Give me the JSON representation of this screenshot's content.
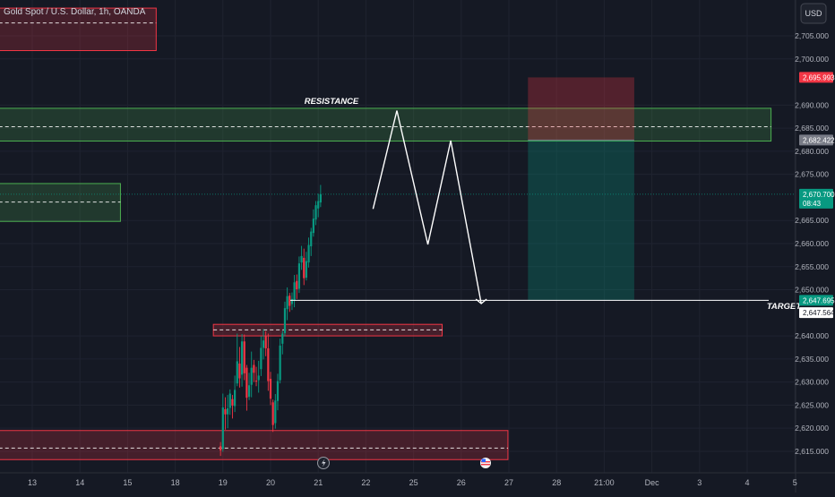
{
  "header": {
    "symbol_label": "Gold Spot / U.S. Dollar, 1h, OANDA"
  },
  "currency_button": {
    "label": "USD"
  },
  "annotations": {
    "resistance": "RESISTANCE",
    "target": "TARGET"
  },
  "price_badges": [
    {
      "value": "2,695.993",
      "bg": "#f23645",
      "fg": "#ffffff"
    },
    {
      "value": "2,682.422",
      "bg": "#787b86",
      "fg": "#ffffff"
    },
    {
      "value": "2,670.700",
      "sub": "08:43",
      "bg": "#089981",
      "fg": "#ffffff"
    },
    {
      "value": "2,647.695",
      "bg": "#089981",
      "fg": "#ffffff"
    },
    {
      "value": "2,647.564",
      "bg": "#ffffff",
      "fg": "#131722"
    }
  ],
  "colors": {
    "background": "#151924",
    "up": "#089981",
    "down": "#f23645",
    "axis_text": "#b2b5be",
    "grid": "#1f2330",
    "green_zone": "#4caf50",
    "red_zone": "#f23645"
  },
  "chart_data": {
    "type": "candlestick",
    "instrument": "Gold Spot / U.S. Dollar",
    "interval": "1h",
    "source": "OANDA",
    "price_axis": {
      "ticks": [
        "2,705.000",
        "2,700.000",
        "2,690.000",
        "2,685.000",
        "2,680.000",
        "2,675.000",
        "2,665.000",
        "2,660.000",
        "2,655.000",
        "2,650.000",
        "2,640.000",
        "2,635.000",
        "2,630.000",
        "2,625.000",
        "2,620.000",
        "2,615.000"
      ],
      "range": [
        2613,
        2711
      ]
    },
    "time_axis": {
      "ticks": [
        "13",
        "14",
        "15",
        "18",
        "19",
        "20",
        "21",
        "22",
        "25",
        "26",
        "27",
        "28",
        "21:00",
        "Dec",
        "3",
        "4",
        "5"
      ],
      "day_index": [
        0,
        1,
        2,
        3,
        4,
        5,
        6,
        7,
        8,
        9,
        10,
        11,
        12,
        13,
        14,
        15,
        16
      ]
    },
    "last_price": 2670.7,
    "zones": [
      {
        "name": "red-zone-top",
        "color": "red",
        "x_from": -0.7,
        "x_to": 2.6,
        "y_bottom": 2701.8,
        "y_top": 2711,
        "midline": 2707.8
      },
      {
        "name": "resistance-zone",
        "color": "green",
        "x_from": -0.7,
        "x_to": 15.5,
        "y_bottom": 2682.2,
        "y_top": 2689.3,
        "midline": 2685.3
      },
      {
        "name": "green-zone-left",
        "color": "green",
        "x_from": -0.7,
        "x_to": 1.85,
        "y_bottom": 2664.8,
        "y_top": 2673.0,
        "midline": 2669.0
      },
      {
        "name": "red-zone-mid",
        "color": "red",
        "x_from": 3.8,
        "x_to": 8.6,
        "y_bottom": 2640.0,
        "y_top": 2642.5,
        "midline": 2641.3
      },
      {
        "name": "red-zone-bottom",
        "color": "red",
        "x_from": -0.7,
        "x_to": 9.98,
        "y_bottom": 2613.2,
        "y_top": 2619.5,
        "midline": 2615.7
      }
    ],
    "position": {
      "x_from": 10.4,
      "x_to": 12.63,
      "stop": 2695.993,
      "entry": 2682.422,
      "target": 2647.695
    },
    "target_line": 2647.695,
    "projection_path": [
      [
        7.15,
        2667.5
      ],
      [
        7.65,
        2688.8
      ],
      [
        8.3,
        2659.8
      ],
      [
        8.78,
        2682.3
      ],
      [
        9.42,
        2647.0
      ]
    ],
    "candles": [
      [
        3.95,
        2616.1,
        2617.0,
        2614.0,
        2615.2
      ],
      [
        4.0,
        2615.5,
        2627.5,
        2614.9,
        2624.5
      ],
      [
        4.05,
        2624.1,
        2626.7,
        2619.7,
        2623.0
      ],
      [
        4.1,
        2623.0,
        2627.2,
        2620.0,
        2624.3
      ],
      [
        4.15,
        2624.4,
        2628.4,
        2622.9,
        2627.5
      ],
      [
        4.2,
        2626.3,
        2627.2,
        2622.1,
        2624.9
      ],
      [
        4.25,
        2624.8,
        2631.4,
        2623.5,
        2628.3
      ],
      [
        4.3,
        2629.7,
        2640.5,
        2629.1,
        2634.5
      ],
      [
        4.35,
        2634.0,
        2637.6,
        2628.8,
        2630.8
      ],
      [
        4.4,
        2631.6,
        2640.4,
        2629.0,
        2638.8
      ],
      [
        4.45,
        2638.8,
        2640.3,
        2630.4,
        2631.9
      ],
      [
        4.5,
        2633.1,
        2633.7,
        2623.8,
        2626.6
      ],
      [
        4.55,
        2626.8,
        2632.0,
        2626.1,
        2629.3
      ],
      [
        4.6,
        2629.4,
        2636.6,
        2626.7,
        2633.1
      ],
      [
        4.65,
        2633.7,
        2634.8,
        2630.0,
        2632.0
      ],
      [
        4.7,
        2630.3,
        2633.3,
        2629.1,
        2630.1
      ],
      [
        4.75,
        2630.4,
        2634.6,
        2627.7,
        2631.4
      ],
      [
        4.8,
        2632.8,
        2639.9,
        2631.3,
        2637.4
      ],
      [
        4.85,
        2637.4,
        2641.5,
        2634.9,
        2639.0
      ],
      [
        4.9,
        2640.0,
        2641.0,
        2635.6,
        2637.3
      ],
      [
        4.95,
        2637.3,
        2640.5,
        2628.1,
        2630.2
      ],
      [
        5.0,
        2630.7,
        2632.2,
        2625.0,
        2626.4
      ],
      [
        5.05,
        2625.6,
        2626.2,
        2619.2,
        2620.7
      ],
      [
        5.1,
        2621.1,
        2627.4,
        2619.9,
        2626.0
      ],
      [
        5.15,
        2625.9,
        2631.8,
        2623.9,
        2630.2
      ],
      [
        5.2,
        2630.4,
        2639.4,
        2629.7,
        2637.9
      ],
      [
        5.25,
        2638.3,
        2641.1,
        2636.0,
        2640.5
      ],
      [
        5.3,
        2640.6,
        2647.4,
        2639.9,
        2646.0
      ],
      [
        5.35,
        2645.8,
        2650.5,
        2643.4,
        2648.6
      ],
      [
        5.4,
        2648.7,
        2649.3,
        2645.2,
        2646.5
      ],
      [
        5.45,
        2646.9,
        2649.4,
        2645.6,
        2648.0
      ],
      [
        5.5,
        2647.6,
        2653.2,
        2646.2,
        2651.6
      ],
      [
        5.55,
        2651.9,
        2653.3,
        2648.0,
        2650.1
      ],
      [
        5.6,
        2650.2,
        2657.2,
        2649.3,
        2655.7
      ],
      [
        5.65,
        2655.9,
        2659.5,
        2654.3,
        2657.3
      ],
      [
        5.7,
        2656.9,
        2658.9,
        2651.0,
        2652.5
      ],
      [
        5.75,
        2652.6,
        2658.2,
        2652.0,
        2656.2
      ],
      [
        5.8,
        2655.9,
        2661.3,
        2654.8,
        2659.7
      ],
      [
        5.85,
        2659.4,
        2663.4,
        2657.3,
        2662.6
      ],
      [
        5.9,
        2662.3,
        2667.4,
        2661.5,
        2665.4
      ],
      [
        5.95,
        2665.2,
        2669.2,
        2664.0,
        2668.3
      ],
      [
        6.0,
        2667.6,
        2670.8,
        2665.7,
        2669.2
      ],
      [
        6.05,
        2668.9,
        2672.7,
        2667.9,
        2670.7
      ]
    ]
  }
}
